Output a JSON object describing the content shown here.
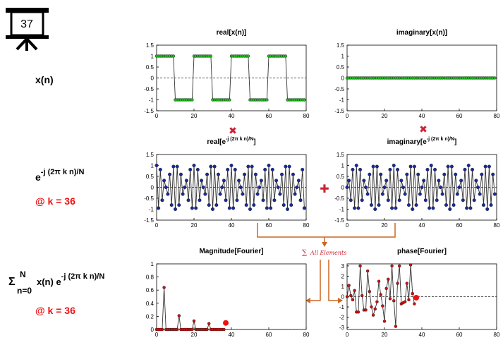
{
  "slide_number": "37",
  "labels": {
    "xn": "x(n)",
    "kernel_base": "e",
    "kernel_exp": "-j (2π k n)/N",
    "at_k1": "@ k = 36",
    "sum_symbol": "Σ",
    "sum_sup": "N",
    "sum_sub": "n=0",
    "sum_body": "x(n) e",
    "sum_exp": "-j (2π k n)/N",
    "at_k2": "@ k = 36",
    "all_elements": "All Elements",
    "sum_mini": "∑"
  },
  "operators": {
    "times": "✖",
    "plus": "✚"
  },
  "colors": {
    "green": "#22bb22",
    "blue": "#1a2a99",
    "red": "#cc1111",
    "orange": "#cc6622",
    "dashed": "#222222"
  },
  "chart_data": [
    {
      "id": "real-x",
      "type": "line",
      "title": "real[x(n)]",
      "xlim": [
        0,
        80
      ],
      "ylim": [
        -1.5,
        1.5
      ],
      "xticks": [
        0,
        20,
        40,
        60,
        80
      ],
      "yticks": [
        -1.5,
        -1,
        -0.5,
        0,
        0.5,
        1,
        1.5
      ],
      "ytick_labels": [
        "-1.5",
        "-1",
        "-0.5",
        "0",
        "0.5",
        "1",
        "1.5"
      ],
      "marker_color": "#22bb22",
      "x": [
        0,
        1,
        2,
        3,
        4,
        5,
        6,
        7,
        8,
        9,
        10,
        11,
        12,
        13,
        14,
        15,
        16,
        17,
        18,
        19,
        20,
        21,
        22,
        23,
        24,
        25,
        26,
        27,
        28,
        29,
        30,
        31,
        32,
        33,
        34,
        35,
        36,
        37,
        38,
        39,
        40,
        41,
        42,
        43,
        44,
        45,
        46,
        47,
        48,
        49,
        50,
        51,
        52,
        53,
        54,
        55,
        56,
        57,
        58,
        59,
        60,
        61,
        62,
        63,
        64,
        65,
        66,
        67,
        68,
        69,
        70,
        71,
        72,
        73,
        74,
        75,
        76,
        77,
        78,
        79
      ],
      "y": [
        1,
        1,
        1,
        1,
        1,
        1,
        1,
        1,
        1,
        1,
        -1,
        -1,
        -1,
        -1,
        -1,
        -1,
        -1,
        -1,
        -1,
        -1,
        1,
        1,
        1,
        1,
        1,
        1,
        1,
        1,
        1,
        1,
        -1,
        -1,
        -1,
        -1,
        -1,
        -1,
        -1,
        -1,
        -1,
        -1,
        1,
        1,
        1,
        1,
        1,
        1,
        1,
        1,
        1,
        1,
        -1,
        -1,
        -1,
        -1,
        -1,
        -1,
        -1,
        -1,
        -1,
        -1,
        1,
        1,
        1,
        1,
        1,
        1,
        1,
        1,
        1,
        1,
        -1,
        -1,
        -1,
        -1,
        -1,
        -1,
        -1,
        -1,
        -1,
        -1
      ]
    },
    {
      "id": "imag-x",
      "type": "line",
      "title": "imaginary[x(n)]",
      "xlim": [
        0,
        80
      ],
      "ylim": [
        -1.5,
        1.5
      ],
      "xticks": [
        0,
        20,
        40,
        60,
        80
      ],
      "yticks": [
        -1.5,
        -1,
        -0.5,
        0,
        0.5,
        1,
        1.5
      ],
      "ytick_labels": [
        "-1.5",
        "-1",
        "-0.5",
        "0",
        "0.5",
        "1",
        "1.5"
      ],
      "marker_color": "#22bb22",
      "x": [
        0,
        1,
        2,
        3,
        4,
        5,
        6,
        7,
        8,
        9,
        10,
        11,
        12,
        13,
        14,
        15,
        16,
        17,
        18,
        19,
        20,
        21,
        22,
        23,
        24,
        25,
        26,
        27,
        28,
        29,
        30,
        31,
        32,
        33,
        34,
        35,
        36,
        37,
        38,
        39,
        40,
        41,
        42,
        43,
        44,
        45,
        46,
        47,
        48,
        49,
        50,
        51,
        52,
        53,
        54,
        55,
        56,
        57,
        58,
        59,
        60,
        61,
        62,
        63,
        64,
        65,
        66,
        67,
        68,
        69,
        70,
        71,
        72,
        73,
        74,
        75,
        76,
        77,
        78,
        79
      ],
      "y": [
        0,
        0,
        0,
        0,
        0,
        0,
        0,
        0,
        0,
        0,
        0,
        0,
        0,
        0,
        0,
        0,
        0,
        0,
        0,
        0,
        0,
        0,
        0,
        0,
        0,
        0,
        0,
        0,
        0,
        0,
        0,
        0,
        0,
        0,
        0,
        0,
        0,
        0,
        0,
        0,
        0,
        0,
        0,
        0,
        0,
        0,
        0,
        0,
        0,
        0,
        0,
        0,
        0,
        0,
        0,
        0,
        0,
        0,
        0,
        0,
        0,
        0,
        0,
        0,
        0,
        0,
        0,
        0,
        0,
        0,
        0,
        0,
        0,
        0,
        0,
        0,
        0,
        0,
        0,
        0
      ]
    },
    {
      "id": "real-e",
      "type": "line",
      "title": "real[e",
      "title_sup": "-j (2π k n)/N",
      "title_end": "]",
      "xlim": [
        0,
        80
      ],
      "ylim": [
        -1.5,
        1.5
      ],
      "xticks": [
        0,
        20,
        40,
        60,
        80
      ],
      "yticks": [
        -1.5,
        -1,
        -0.5,
        0,
        0.5,
        1,
        1.5
      ],
      "ytick_labels": [
        "-1.5",
        "-1",
        "-0.5",
        "0",
        "0.5",
        "1",
        "1.5"
      ],
      "marker_color": "#1a2a99",
      "x": [
        0,
        1,
        2,
        3,
        4,
        5,
        6,
        7,
        8,
        9,
        10,
        11,
        12,
        13,
        14,
        15,
        16,
        17,
        18,
        19,
        20,
        21,
        22,
        23,
        24,
        25,
        26,
        27,
        28,
        29,
        30,
        31,
        32,
        33,
        34,
        35,
        36,
        37,
        38,
        39,
        40,
        41,
        42,
        43,
        44,
        45,
        46,
        47,
        48,
        49,
        50,
        51,
        52,
        53,
        54,
        55,
        56,
        57,
        58,
        59,
        60,
        61,
        62,
        63,
        64,
        65,
        66,
        67,
        68,
        69,
        70,
        71,
        72,
        73,
        74,
        75,
        76,
        77,
        78,
        79
      ],
      "y": [
        1.0,
        -0.95,
        0.81,
        -0.59,
        0.31,
        0.0,
        -0.31,
        0.59,
        -0.81,
        0.95,
        -1.0,
        0.95,
        -0.81,
        0.59,
        -0.31,
        0.0,
        0.31,
        -0.59,
        0.81,
        -0.95,
        1.0,
        -0.95,
        0.81,
        -0.59,
        0.31,
        0.0,
        -0.31,
        0.59,
        -0.81,
        0.95,
        -1.0,
        0.95,
        -0.81,
        0.59,
        -0.31,
        0.0,
        0.31,
        -0.59,
        0.81,
        -0.95,
        1.0,
        -0.95,
        0.81,
        -0.59,
        0.31,
        0.0,
        -0.31,
        0.59,
        -0.81,
        0.95,
        -1.0,
        0.95,
        -0.81,
        0.59,
        -0.31,
        0.0,
        0.31,
        -0.59,
        0.81,
        -0.95,
        1.0,
        -0.95,
        0.81,
        -0.59,
        0.31,
        0.0,
        -0.31,
        0.59,
        -0.81,
        0.95,
        -1.0,
        0.95,
        -0.81,
        0.59,
        -0.31,
        0.0,
        0.31,
        -0.59,
        0.81,
        -0.95
      ]
    },
    {
      "id": "imag-e",
      "type": "line",
      "title": "imaginary[e",
      "title_sup": "-j (2π k n)/N",
      "title_end": "]",
      "xlim": [
        0,
        80
      ],
      "ylim": [
        -1.5,
        1.5
      ],
      "xticks": [
        0,
        20,
        40,
        60,
        80
      ],
      "yticks": [
        -1.5,
        -1,
        -0.5,
        0,
        0.5,
        1,
        1.5
      ],
      "ytick_labels": [
        "-1.5",
        "-1",
        "-0.5",
        "0",
        "0.5",
        "1",
        "1.5"
      ],
      "marker_color": "#1a2a99",
      "x": [
        0,
        1,
        2,
        3,
        4,
        5,
        6,
        7,
        8,
        9,
        10,
        11,
        12,
        13,
        14,
        15,
        16,
        17,
        18,
        19,
        20,
        21,
        22,
        23,
        24,
        25,
        26,
        27,
        28,
        29,
        30,
        31,
        32,
        33,
        34,
        35,
        36,
        37,
        38,
        39,
        40,
        41,
        42,
        43,
        44,
        45,
        46,
        47,
        48,
        49,
        50,
        51,
        52,
        53,
        54,
        55,
        56,
        57,
        58,
        59,
        60,
        61,
        62,
        63,
        64,
        65,
        66,
        67,
        68,
        69,
        70,
        71,
        72,
        73,
        74,
        75,
        76,
        77,
        78,
        79
      ],
      "y": [
        0.0,
        0.31,
        -0.59,
        0.81,
        -0.95,
        1.0,
        -0.95,
        0.81,
        -0.59,
        0.31,
        0.0,
        -0.31,
        0.59,
        -0.81,
        0.95,
        -1.0,
        0.95,
        -0.81,
        0.59,
        -0.31,
        0.0,
        0.31,
        -0.59,
        0.81,
        -0.95,
        1.0,
        -0.95,
        0.81,
        -0.59,
        0.31,
        0.0,
        -0.31,
        0.59,
        -0.81,
        0.95,
        -1.0,
        0.95,
        -0.81,
        0.59,
        -0.31,
        0.0,
        0.31,
        -0.59,
        0.81,
        -0.95,
        1.0,
        -0.95,
        0.81,
        -0.59,
        0.31,
        0.0,
        -0.31,
        0.59,
        -0.81,
        0.95,
        -1.0,
        0.95,
        -0.81,
        0.59,
        -0.31,
        0.0,
        0.31,
        -0.59,
        0.81,
        -0.95,
        1.0,
        -0.95,
        0.81,
        -0.59,
        0.31,
        0.0,
        -0.31,
        0.59,
        -0.81,
        0.95,
        -1.0,
        0.95,
        -0.81,
        0.59,
        -0.31
      ]
    },
    {
      "id": "magnitude",
      "type": "line",
      "title": "Magnitude[Fourier]",
      "xlim": [
        0,
        80
      ],
      "ylim": [
        0,
        1
      ],
      "xticks": [
        0,
        20,
        40,
        60,
        80
      ],
      "yticks": [
        0,
        0.2,
        0.4,
        0.6,
        0.8,
        1
      ],
      "ytick_labels": [
        "0",
        "0.2",
        "0.4",
        "0.6",
        "0.8",
        "1"
      ],
      "marker_color": "#cc1111",
      "x": [
        0,
        1,
        2,
        3,
        4,
        5,
        6,
        7,
        8,
        9,
        10,
        11,
        12,
        13,
        14,
        15,
        16,
        17,
        18,
        19,
        20,
        21,
        22,
        23,
        24,
        25,
        26,
        27,
        28,
        29,
        30,
        31,
        32,
        33,
        34,
        35,
        36
      ],
      "y": [
        0,
        0,
        0,
        0,
        0.64,
        0,
        0,
        0,
        0,
        0,
        0,
        0,
        0.21,
        0,
        0,
        0,
        0,
        0,
        0,
        0,
        0.13,
        0,
        0,
        0,
        0,
        0,
        0,
        0,
        0.09,
        0,
        0,
        0,
        0,
        0,
        0,
        0,
        0
      ],
      "highlight": {
        "x": 37,
        "y": 0.1
      },
      "tail_dashed": {
        "from": 37,
        "to": 80,
        "y": 0
      }
    },
    {
      "id": "phase",
      "type": "line",
      "title": "phase[Fourier]",
      "xlim": [
        0,
        80
      ],
      "ylim": [
        -3.2,
        3.2
      ],
      "xticks": [
        0,
        20,
        40,
        60,
        80
      ],
      "yticks": [
        -3,
        -2,
        -1,
        0,
        1,
        2,
        3
      ],
      "ytick_labels": [
        "-3",
        "-2",
        "-1",
        "0",
        "1",
        "2",
        "3"
      ],
      "marker_color": "#cc1111",
      "x": [
        0,
        1,
        2,
        3,
        4,
        5,
        6,
        7,
        8,
        9,
        10,
        11,
        12,
        13,
        14,
        15,
        16,
        17,
        18,
        19,
        20,
        21,
        22,
        23,
        24,
        25,
        26,
        27,
        28,
        29,
        30,
        31,
        32,
        33,
        34,
        35,
        36
      ],
      "y": [
        0,
        1.1,
        0.1,
        -0.3,
        0.6,
        -1.5,
        -1.5,
        3.0,
        0.1,
        -1.3,
        -1.3,
        2.5,
        0.5,
        -1.0,
        -1.8,
        -1.2,
        -0.5,
        1.5,
        0.2,
        -0.9,
        -2.4,
        0.8,
        1.7,
        -0.2,
        3.0,
        -0.4,
        -2.9,
        1.3,
        3.0,
        -0.7,
        -0.6,
        -0.5,
        1.3,
        -0.3,
        3.1,
        0.3,
        -0.7
      ],
      "highlight": {
        "x": 37,
        "y": -0.1
      }
    }
  ]
}
